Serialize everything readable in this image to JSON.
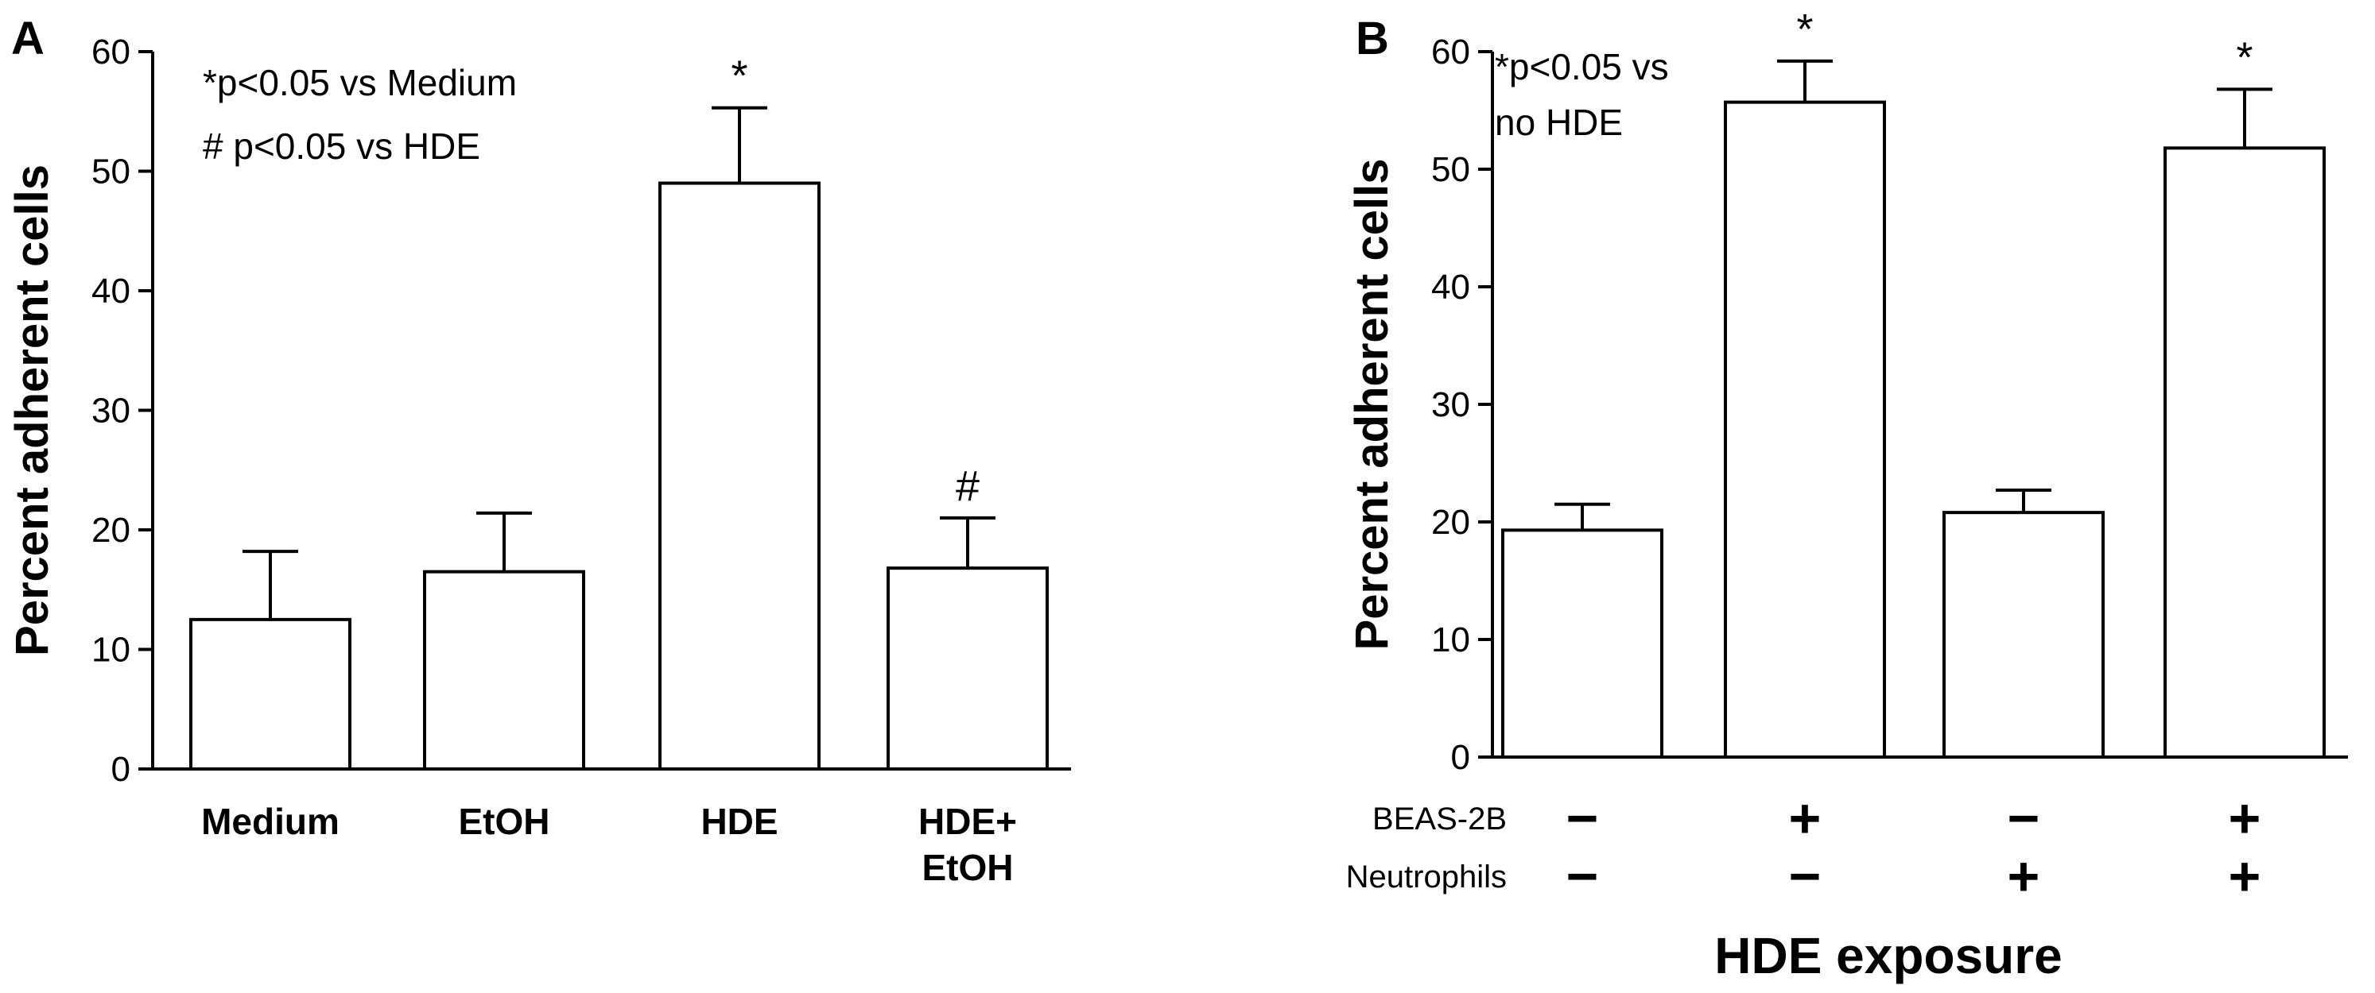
{
  "chart_data": [
    {
      "panel": "A",
      "type": "bar",
      "ylabel": "Percent adherent cells",
      "xlabel": "",
      "ylim": [
        0,
        60
      ],
      "yticks": [
        0,
        10,
        20,
        30,
        40,
        50,
        60
      ],
      "categories": [
        "Medium",
        "EtOH",
        "HDE",
        "HDE+\nEtOH"
      ],
      "values": [
        12.5,
        16.5,
        49,
        16.8
      ],
      "errors": [
        5.7,
        4.9,
        6.3,
        4.2
      ],
      "markers": [
        "",
        "",
        "*",
        "#"
      ],
      "annotations": [
        "*p<0.05 vs Medium",
        "# p<0.05 vs HDE"
      ]
    },
    {
      "panel": "B",
      "type": "bar",
      "ylabel": "Percent adherent cells",
      "xlabel": "HDE exposure",
      "ylim": [
        0,
        60
      ],
      "yticks": [
        0,
        10,
        20,
        30,
        40,
        50,
        60
      ],
      "categories": [
        "",
        "",
        "",
        ""
      ],
      "values": [
        19.3,
        55.7,
        20.8,
        51.8
      ],
      "errors": [
        2.2,
        3.5,
        1.9,
        5.0
      ],
      "markers": [
        "",
        "*",
        "",
        "*"
      ],
      "annotations": [
        "*p<0.05 vs",
        "no HDE"
      ],
      "condition_rows": [
        {
          "label": "BEAS-2B",
          "signs": [
            "−",
            "+",
            "−",
            "+"
          ]
        },
        {
          "label": "Neutrophils",
          "signs": [
            "−",
            "−",
            "+",
            "+"
          ]
        }
      ]
    }
  ]
}
